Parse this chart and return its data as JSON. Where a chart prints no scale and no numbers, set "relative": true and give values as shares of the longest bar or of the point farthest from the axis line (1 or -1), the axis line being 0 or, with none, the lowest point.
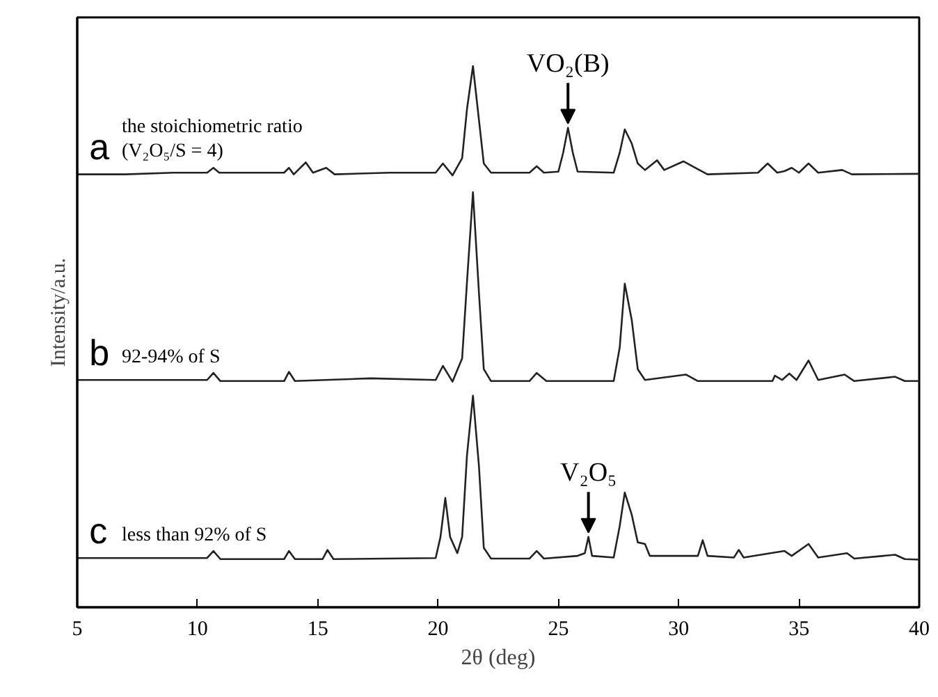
{
  "chart_data": {
    "type": "line",
    "relative": true,
    "xlabel": "2θ (deg)",
    "ylabel": "Intensity/a.u.",
    "xlim": [
      5,
      40
    ],
    "xticks": [
      5,
      10,
      15,
      20,
      25,
      30,
      35,
      40
    ],
    "grid": false,
    "tick_labels": "x",
    "series": [
      {
        "name": "a the stoichiometric ratio\n(V₂O₅/S = 4)",
        "color": "#222222",
        "x": [
          5,
          7,
          9,
          10.4,
          10.66,
          10.9,
          13.6,
          13.8,
          14.0,
          14.5,
          14.8,
          15.35,
          15.7,
          18,
          19.9,
          20.2,
          20.6,
          21.0,
          21.2,
          21.45,
          21.7,
          21.9,
          22.2,
          23.8,
          24.1,
          24.4,
          25.0,
          25.2,
          25.4,
          25.6,
          25.8,
          27.3,
          27.55,
          27.76,
          28.05,
          28.3,
          28.6,
          29.1,
          29.4,
          30.2,
          30.7,
          31.2,
          33.3,
          33.7,
          34.1,
          34.4,
          34.7,
          35.0,
          35.4,
          35.8,
          36.8,
          37.2,
          40
        ],
        "values": [
          0.8,
          0.8,
          0.803,
          0.803,
          0.812,
          0.803,
          0.803,
          0.812,
          0.8,
          0.822,
          0.803,
          0.812,
          0.8,
          0.803,
          0.803,
          0.82,
          0.798,
          0.83,
          0.92,
          1.0,
          0.9,
          0.82,
          0.803,
          0.803,
          0.815,
          0.803,
          0.805,
          0.84,
          0.886,
          0.84,
          0.805,
          0.803,
          0.84,
          0.883,
          0.857,
          0.82,
          0.808,
          0.826,
          0.808,
          0.824,
          0.812,
          0.8,
          0.803,
          0.82,
          0.803,
          0.806,
          0.812,
          0.803,
          0.82,
          0.803,
          0.808,
          0.8,
          0.801
        ]
      },
      {
        "name": "b 92-94% of S",
        "color": "#222222",
        "x": [
          5,
          10.4,
          10.66,
          10.95,
          13.6,
          13.8,
          14.05,
          17.2,
          19.9,
          20.2,
          20.6,
          21.0,
          21.2,
          21.45,
          21.7,
          21.9,
          22.2,
          23.8,
          24.1,
          24.5,
          27.3,
          27.55,
          27.76,
          28.05,
          28.3,
          28.6,
          30.3,
          30.8,
          33.9,
          34.0,
          34.3,
          34.6,
          34.9,
          35.4,
          35.8,
          36.9,
          37.3,
          39.0,
          39.4,
          40
        ],
        "values": [
          0.42,
          0.42,
          0.433,
          0.418,
          0.418,
          0.435,
          0.418,
          0.423,
          0.42,
          0.446,
          0.417,
          0.46,
          0.6,
          0.767,
          0.58,
          0.44,
          0.418,
          0.418,
          0.433,
          0.418,
          0.418,
          0.48,
          0.598,
          0.531,
          0.44,
          0.42,
          0.43,
          0.418,
          0.418,
          0.428,
          0.42,
          0.432,
          0.42,
          0.456,
          0.42,
          0.43,
          0.418,
          0.426,
          0.418,
          0.418
        ]
      },
      {
        "name": "c less than 92% of S",
        "color": "#222222",
        "x": [
          5,
          10.4,
          10.66,
          10.95,
          13.6,
          13.8,
          14.05,
          15.2,
          15.4,
          15.65,
          19.9,
          20.1,
          20.3,
          20.5,
          20.8,
          21.0,
          21.2,
          21.45,
          21.7,
          21.9,
          22.2,
          23.8,
          24.1,
          24.4,
          25.8,
          26.1,
          26.25,
          26.4,
          27.3,
          27.55,
          27.76,
          28.05,
          28.3,
          28.6,
          28.8,
          30.8,
          31.0,
          31.2,
          32.3,
          32.5,
          32.7,
          34.4,
          34.7,
          35.4,
          35.8,
          37.0,
          37.3,
          39.0,
          39.4,
          40
        ],
        "values": [
          0.091,
          0.091,
          0.104,
          0.089,
          0.089,
          0.104,
          0.089,
          0.089,
          0.106,
          0.089,
          0.091,
          0.13,
          0.202,
          0.13,
          0.1,
          0.13,
          0.28,
          0.391,
          0.26,
          0.11,
          0.09,
          0.09,
          0.104,
          0.09,
          0.095,
          0.1,
          0.13,
          0.095,
          0.092,
          0.15,
          0.212,
          0.171,
          0.12,
          0.117,
          0.095,
          0.095,
          0.124,
          0.095,
          0.092,
          0.106,
          0.092,
          0.104,
          0.095,
          0.117,
          0.092,
          0.1,
          0.09,
          0.097,
          0.089,
          0.088
        ]
      }
    ],
    "annotations": [
      {
        "text": "VO₂(B)",
        "x": 25.4,
        "y": 0.886
      },
      {
        "text": "V₂O₅",
        "x": 26.25,
        "y": 0.13
      }
    ]
  }
}
